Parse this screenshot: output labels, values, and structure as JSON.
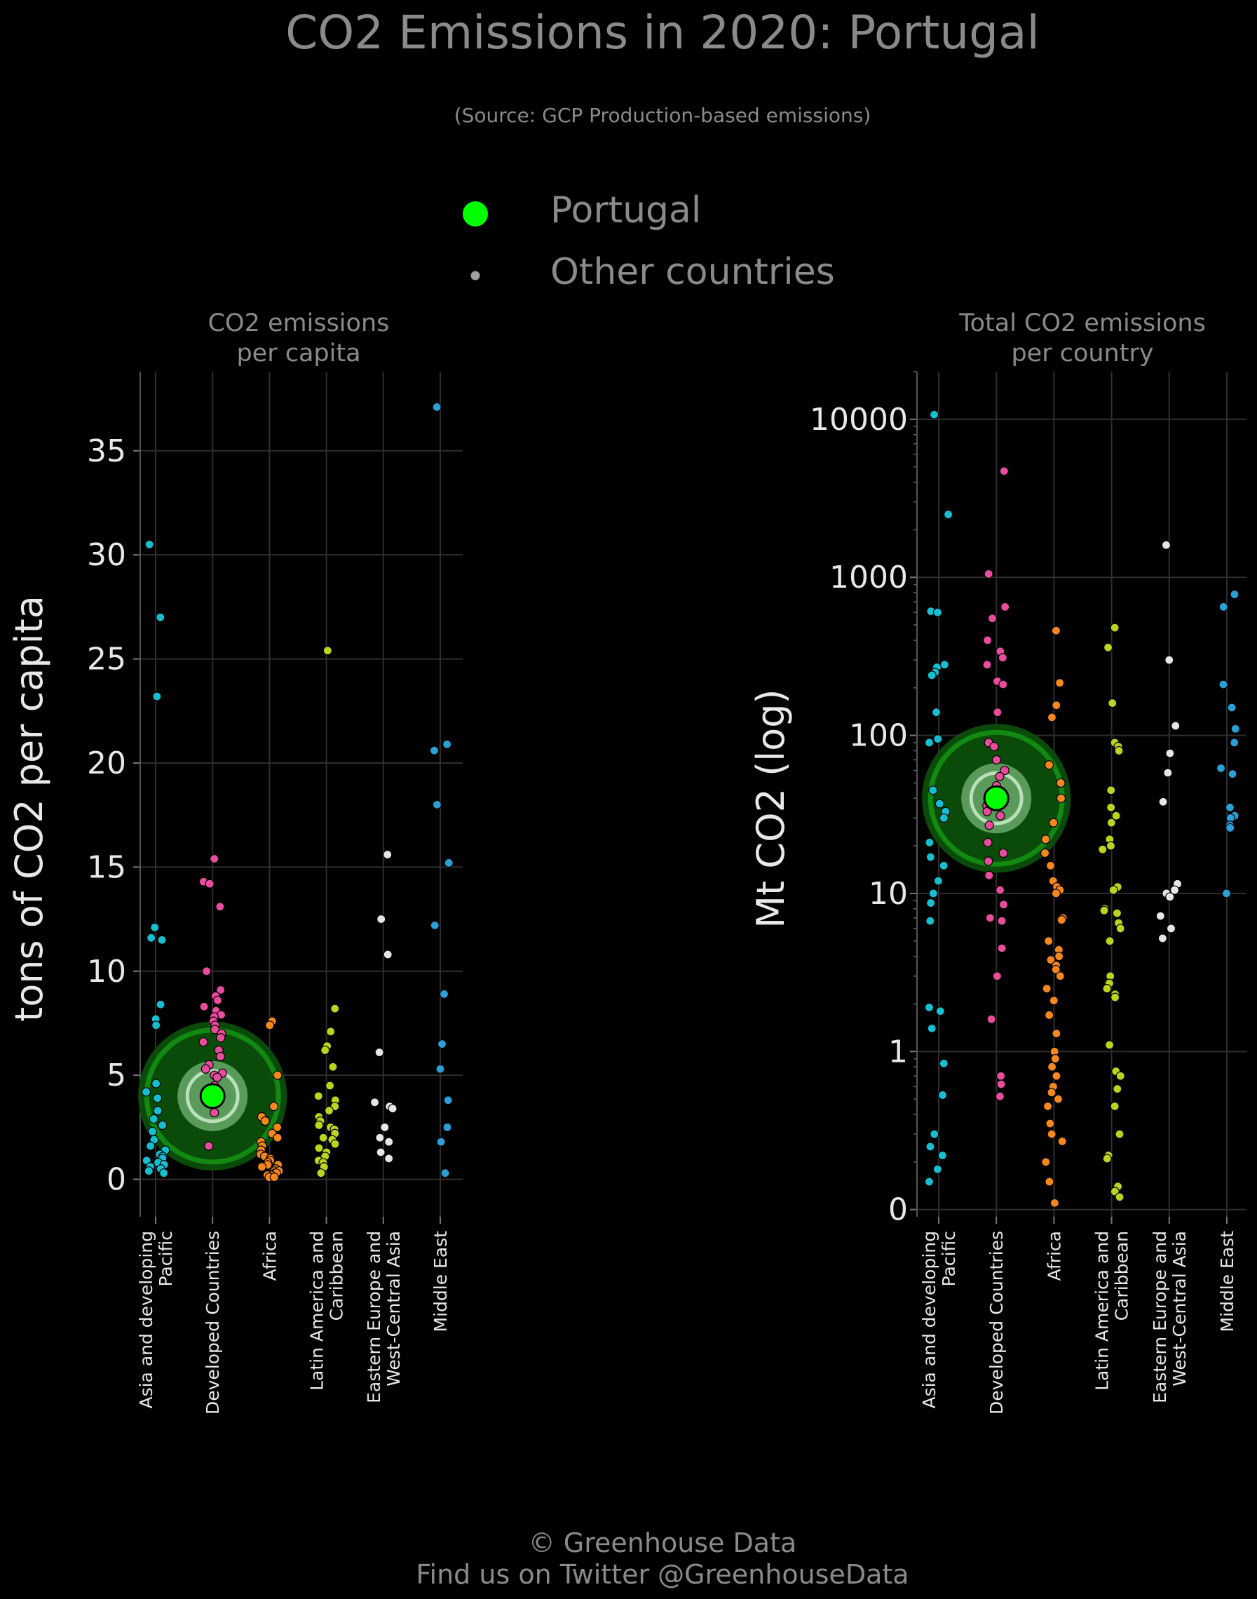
{
  "title": "CO2 Emissions in 2020: Portugal",
  "subtitle": "(Source: GCP Production-based emissions)",
  "legend": {
    "highlight_label": "Portugal",
    "other_label": "Other countries"
  },
  "footer": {
    "line1": "© Greenhouse Data",
    "line2": "Find us on Twitter @GreenhouseData"
  },
  "colors": {
    "background": "#000000",
    "highlight": "#00ff00",
    "highlight_ring": "#0b7a0b",
    "Asia and developing Pacific": "#17becf",
    "Developed Countries": "#e84c9c",
    "Africa": "#f5871f",
    "Latin America and Caribbean": "#bcd31f",
    "Eastern Europe and West-Central Asia": "#e6e6e6",
    "Middle East": "#2a9fd6"
  },
  "chart_data": [
    {
      "type": "scatter",
      "panel": "left",
      "title_line1": "CO2 emissions",
      "title_line2": "per capita",
      "ylabel": "tons of CO2 per capita",
      "yscale": "linear",
      "ylim": [
        -1.8,
        38.8
      ],
      "yticks": [
        0,
        5,
        10,
        15,
        20,
        25,
        30,
        35
      ],
      "ytick_labels": [
        "0",
        "5",
        "10",
        "15",
        "20",
        "25",
        "30",
        "35"
      ],
      "grid": true,
      "categories": [
        "Asia and developing Pacific",
        "Developed Countries",
        "Africa",
        "Latin America and Caribbean",
        "Eastern Europe and West-Central Asia",
        "Middle East"
      ],
      "category_label_lines": [
        [
          "Asia and developing",
          "Pacific"
        ],
        [
          "Developed Countries"
        ],
        [
          "Africa"
        ],
        [
          "Latin America and",
          "Caribbean"
        ],
        [
          "Eastern Europe and",
          "West-Central Asia"
        ],
        [
          "Middle East"
        ]
      ],
      "highlight": {
        "category": "Developed Countries",
        "value": 4.0
      },
      "points": [
        [
          30.5,
          27.0,
          23.2,
          12.1,
          11.6,
          11.5,
          8.4,
          7.7,
          7.4,
          4.6,
          4.2,
          3.9,
          3.3,
          2.9,
          2.6,
          2.3,
          1.9,
          1.6,
          1.4,
          1.2,
          1.1,
          1.0,
          0.9,
          0.8,
          0.7,
          0.6,
          0.5,
          0.4,
          0.3
        ],
        [
          15.4,
          14.3,
          14.2,
          13.1,
          10.0,
          9.1,
          8.8,
          8.6,
          8.3,
          8.1,
          7.9,
          7.8,
          7.6,
          7.4,
          7.2,
          7.0,
          6.8,
          6.6,
          6.2,
          5.9,
          5.5,
          5.3,
          5.1,
          5.0,
          4.9,
          4.5,
          3.9,
          3.2,
          1.6
        ],
        [
          7.6,
          7.4,
          5.0,
          3.5,
          3.0,
          2.8,
          2.5,
          2.2,
          2.0,
          1.8,
          1.6,
          1.4,
          1.2,
          1.1,
          1.0,
          0.9,
          0.8,
          0.7,
          0.7,
          0.6,
          0.5,
          0.4,
          0.4,
          0.3,
          0.3,
          0.2,
          0.2,
          0.1,
          0.1,
          0.1
        ],
        [
          25.4,
          8.2,
          7.1,
          6.4,
          6.2,
          5.4,
          4.5,
          4.0,
          3.8,
          3.5,
          3.3,
          3.0,
          2.8,
          2.6,
          2.5,
          2.4,
          2.2,
          2.0,
          1.9,
          1.7,
          1.5,
          1.3,
          1.1,
          0.9,
          0.8,
          0.6,
          0.3
        ],
        [
          15.6,
          12.5,
          10.8,
          6.1,
          3.7,
          3.5,
          3.4,
          2.5,
          2.0,
          1.8,
          1.3,
          1.0
        ],
        [
          37.1,
          20.9,
          20.6,
          18.0,
          15.2,
          12.2,
          8.9,
          6.5,
          5.3,
          3.8,
          2.5,
          1.8,
          0.3
        ]
      ]
    },
    {
      "type": "scatter",
      "panel": "right",
      "title_line1": "Total CO2 emissions",
      "title_line2": "per country",
      "ylabel": "Mt CO2 (log)",
      "yscale": "log",
      "ylim": [
        0.09,
        20000
      ],
      "yticks": [
        0.1,
        1,
        10,
        100,
        1000,
        10000
      ],
      "ytick_labels": [
        "0",
        "1",
        "10",
        "100",
        "1000",
        "10000"
      ],
      "grid": true,
      "categories": [
        "Asia and developing Pacific",
        "Developed Countries",
        "Africa",
        "Latin America and Caribbean",
        "Eastern Europe and West-Central Asia",
        "Middle East"
      ],
      "category_label_lines": [
        [
          "Asia and developing",
          "Pacific"
        ],
        [
          "Developed Countries"
        ],
        [
          "Africa"
        ],
        [
          "Latin America and",
          "Caribbean"
        ],
        [
          "Eastern Europe and",
          "West-Central Asia"
        ],
        [
          "Middle East"
        ]
      ],
      "highlight": {
        "category": "Developed Countries",
        "value": 40
      },
      "points": [
        [
          10700,
          2500,
          610,
          600,
          280,
          270,
          250,
          240,
          140,
          95,
          90,
          45,
          37,
          33,
          30,
          21,
          17,
          15,
          12,
          10,
          8.7,
          6.7,
          1.9,
          1.8,
          1.4,
          0.84,
          0.53,
          0.3,
          0.25,
          0.22,
          0.18,
          0.15
        ],
        [
          4700,
          1050,
          650,
          550,
          400,
          340,
          310,
          280,
          220,
          210,
          140,
          90,
          85,
          70,
          60,
          55,
          48,
          42,
          36,
          33,
          31,
          27,
          21,
          18,
          16,
          13,
          10.5,
          8.5,
          7,
          6.7,
          4.5,
          3,
          1.6,
          0.7,
          0.62,
          0.52
        ],
        [
          460,
          215,
          155,
          130,
          65,
          50,
          40,
          28,
          22,
          18,
          15,
          12,
          11,
          10.5,
          10,
          7,
          6.8,
          5,
          4.4,
          4,
          3.8,
          3.5,
          3.3,
          3,
          2.5,
          2.1,
          1.7,
          1.3,
          1.0,
          0.9,
          0.8,
          0.7,
          0.6,
          0.55,
          0.5,
          0.45,
          0.35,
          0.3,
          0.27,
          0.2,
          0.15,
          0.11
        ],
        [
          480,
          360,
          160,
          90,
          85,
          80,
          45,
          35,
          31,
          28,
          22,
          20,
          19,
          11,
          10.5,
          8,
          7.8,
          7.5,
          6.5,
          6,
          5,
          3,
          2.7,
          2.5,
          2.3,
          2.2,
          1.1,
          0.75,
          0.7,
          0.58,
          0.45,
          0.3,
          0.22,
          0.21,
          0.14,
          0.13,
          0.12
        ],
        [
          1600,
          300,
          115,
          77,
          58,
          38,
          11.5,
          10.5,
          10,
          9.5,
          7.2,
          6,
          5.2
        ],
        [
          780,
          650,
          210,
          150,
          110,
          90,
          62,
          57,
          35,
          31,
          30,
          27,
          26,
          10
        ]
      ]
    }
  ]
}
